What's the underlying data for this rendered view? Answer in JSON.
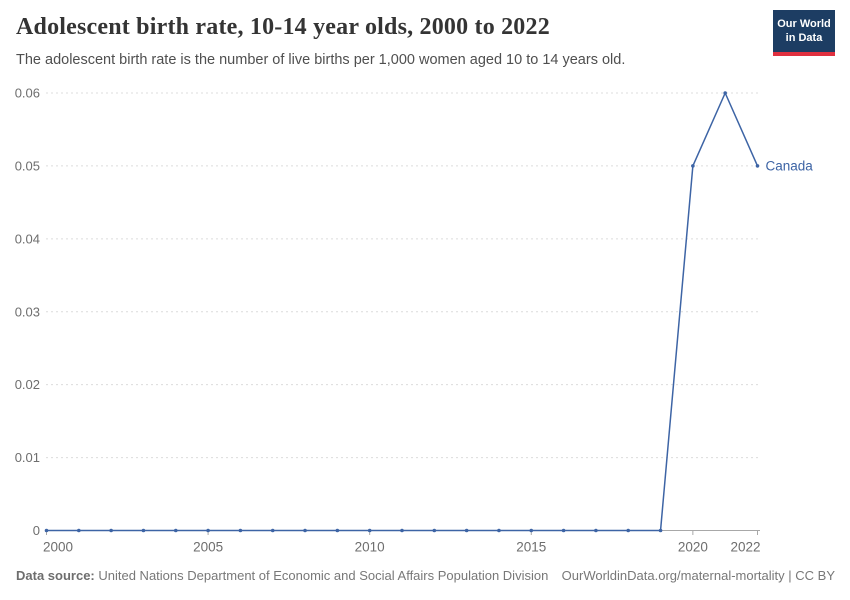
{
  "header": {
    "title": "Adolescent birth rate, 10-14 year olds, 2000 to 2022",
    "subtitle": "The adolescent birth rate is the number of live births per 1,000 women aged 10 to 14 years old.",
    "logo": {
      "line1": "Our World",
      "line2": "in Data"
    }
  },
  "chart_data": {
    "type": "line",
    "title": "Adolescent birth rate, 10-14 year olds, 2000 to 2022",
    "xlabel": "",
    "ylabel": "",
    "xlim": [
      2000,
      2022
    ],
    "ylim": [
      0,
      0.06
    ],
    "x_ticks": [
      2000,
      2005,
      2010,
      2015,
      2020,
      2022
    ],
    "y_ticks": [
      0,
      0.01,
      0.02,
      0.03,
      0.04,
      0.05,
      0.06
    ],
    "grid": "horizontal-dashed",
    "legend_position": "end-of-line-label",
    "series": [
      {
        "name": "Canada",
        "color": "#3d64a5",
        "x": [
          2000,
          2001,
          2002,
          2003,
          2004,
          2005,
          2006,
          2007,
          2008,
          2009,
          2010,
          2011,
          2012,
          2013,
          2014,
          2015,
          2016,
          2017,
          2018,
          2019,
          2020,
          2021,
          2022
        ],
        "values": [
          0,
          0,
          0,
          0,
          0,
          0,
          0,
          0,
          0,
          0,
          0,
          0,
          0,
          0,
          0,
          0,
          0,
          0,
          0,
          0,
          0.05,
          0.06,
          0.05
        ]
      }
    ]
  },
  "footer": {
    "datasource_label": "Data source:",
    "datasource_text": " United Nations Department of Economic and Social Affairs Population Division",
    "credit": "OurWorldinData.org/maternal-mortality | CC BY"
  },
  "colors": {
    "line": "#3d64a5",
    "gridline": "#dcdcdc",
    "axis": "#a8a8a8",
    "tick_label": "#6e6e6e",
    "logo_bg": "#1d3d63",
    "logo_stripe": "#e0303f"
  }
}
